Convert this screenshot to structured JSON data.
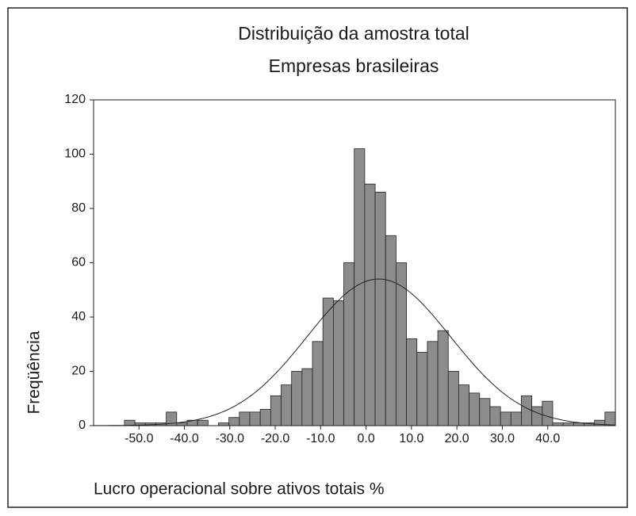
{
  "chart_data": {
    "type": "histogram",
    "title": "Distribuição da amostra total",
    "subtitle": "Empresas brasileiras",
    "x_label": "Lucro operacional sobre ativos totais %",
    "y_label": "Freqüência",
    "bins": [
      -53.2,
      -50.9,
      -48.6,
      -46.3,
      -44.0,
      -41.7,
      -39.4,
      -37.1,
      -34.8,
      -32.5,
      -30.2,
      -27.9,
      -25.6,
      -23.3,
      -21.0,
      -18.7,
      -16.4,
      -14.1,
      -11.8,
      -9.5,
      -7.2,
      -4.9,
      -2.6,
      -0.3,
      2.0,
      4.3,
      6.6,
      8.9,
      11.2,
      13.5,
      15.8,
      18.1,
      20.4,
      22.7,
      25.0,
      27.3,
      29.6,
      31.9,
      34.2,
      36.5,
      38.8,
      41.1,
      43.4,
      45.7,
      48.0,
      50.3,
      52.6,
      54.9
    ],
    "values": [
      2,
      1,
      1,
      1,
      5,
      1,
      2,
      2,
      0,
      1,
      3,
      5,
      5,
      6,
      11,
      15,
      20,
      21,
      31,
      47,
      46,
      60,
      102,
      89,
      86,
      70,
      60,
      32,
      27,
      31,
      35,
      20,
      15,
      12,
      10,
      7,
      5,
      5,
      11,
      7,
      9,
      1,
      1,
      1,
      1,
      2,
      5
    ],
    "color": "#8c8c8c",
    "normal_curve": {
      "mean": 2.8,
      "sd": 15.8
    },
    "xlim": [
      -60,
      54.9
    ],
    "ylim": [
      0,
      120
    ],
    "xticks": [
      {
        "value": -50,
        "label": "-50.0"
      },
      {
        "value": -40,
        "label": "-40.0"
      },
      {
        "value": -30,
        "label": "-30.0"
      },
      {
        "value": -20,
        "label": "-20.0"
      },
      {
        "value": -10,
        "label": "-10.0"
      },
      {
        "value": 0,
        "label": "0.0"
      },
      {
        "value": 10,
        "label": "10.0"
      },
      {
        "value": 20,
        "label": "20.0"
      },
      {
        "value": 30,
        "label": "30.0"
      },
      {
        "value": 40,
        "label": "40.0"
      }
    ],
    "yticks": [
      0,
      20,
      40,
      60,
      80,
      100,
      120
    ]
  }
}
